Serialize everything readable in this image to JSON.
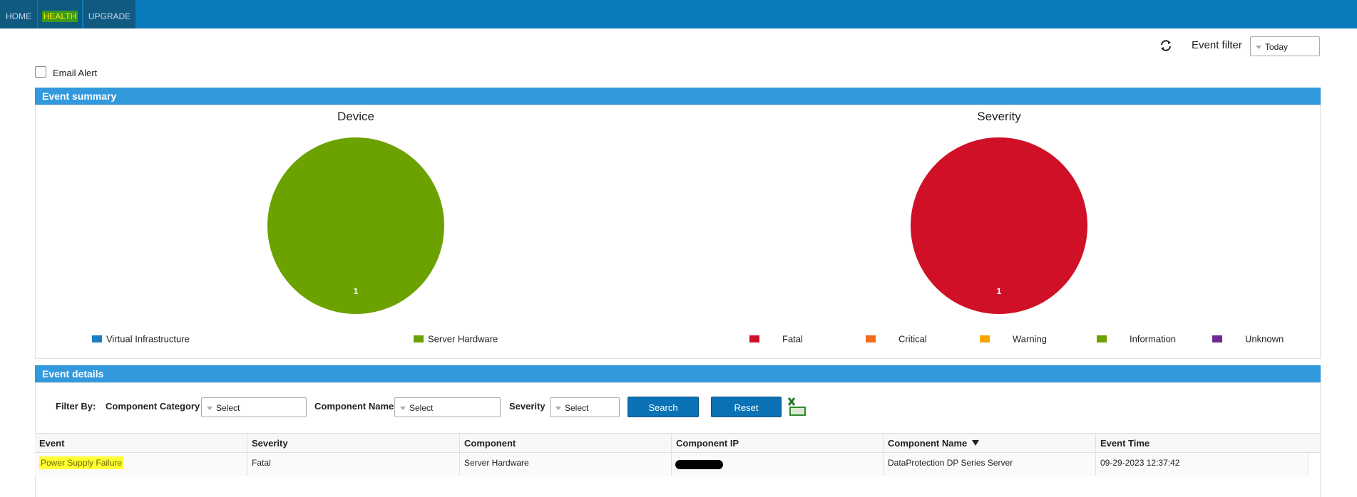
{
  "nav": [
    "HOME",
    "HEALTH",
    "UPGRADE"
  ],
  "event_filter": {
    "label": "Event filter",
    "value": "Today"
  },
  "email_alert": {
    "label": "Email Alert"
  },
  "summary": {
    "title": "Event summary"
  },
  "chart_data": [
    {
      "type": "pie",
      "title": "Device",
      "categories": [
        "Virtual Infrastructure",
        "Server Hardware"
      ],
      "values": [
        0,
        1
      ],
      "colors": [
        "#1b7fc1",
        "#6ca200"
      ]
    },
    {
      "type": "pie",
      "title": "Severity",
      "categories": [
        "Fatal",
        "Critical",
        "Warning",
        "Information",
        "Unknown"
      ],
      "values": [
        1,
        0,
        0,
        0,
        0
      ],
      "colors": [
        "#d01027",
        "#f26b1d",
        "#f5a700",
        "#6ca200",
        "#6f2b91"
      ]
    }
  ],
  "details": {
    "title": "Event details",
    "filter_label": "Filter By:",
    "filters": [
      {
        "label": "Component Category",
        "placeholder": "Select"
      },
      {
        "label": "Component Name",
        "placeholder": "Select"
      },
      {
        "label": "Severity",
        "placeholder": "Select"
      }
    ],
    "buttons": [
      "Search",
      "Reset"
    ]
  },
  "table": {
    "columns": [
      "Event",
      "Severity",
      "Component",
      "Component IP",
      "Component Name",
      "Event Time"
    ],
    "rows": [
      [
        "Power Supply Failure",
        "Fatal",
        "Server Hardware",
        null,
        "DataProtection DP Series Server",
        "09-29-2023 12:37:42"
      ]
    ]
  }
}
